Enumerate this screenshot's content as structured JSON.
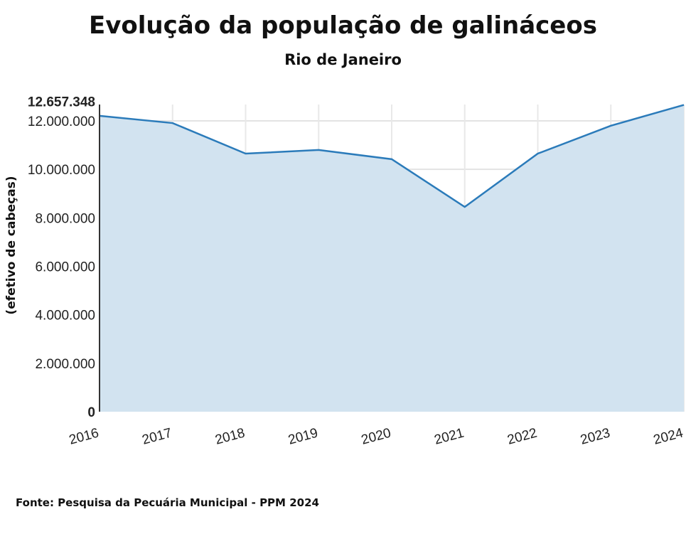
{
  "chart_data": {
    "type": "area",
    "title": "Evolução da população de galináceos",
    "subtitle": "Rio de Janeiro",
    "xlabel": "",
    "ylabel": "(efetivo de cabeças)",
    "x": [
      "2016",
      "2017",
      "2018",
      "2019",
      "2020",
      "2021",
      "2022",
      "2023",
      "2024"
    ],
    "series": [
      {
        "name": "Galináceos",
        "values": [
          12210000,
          11910000,
          10650000,
          10800000,
          10420000,
          8450000,
          10650000,
          11800000,
          12657348
        ]
      }
    ],
    "ylim": [
      0,
      12657348
    ],
    "yticks": [
      0,
      2000000,
      4000000,
      6000000,
      8000000,
      10000000,
      12000000,
      12657348
    ],
    "ytick_labels": [
      "0",
      "2.000.000",
      "4.000.000",
      "6.000.000",
      "8.000.000",
      "10.000.000",
      "12.000.000",
      "12.657.348"
    ],
    "grid": true,
    "line_color": "#2b7bba",
    "fill_color": "#d2e3f0"
  },
  "source": "Fonte: Pesquisa da Pecuária Municipal - PPM 2024"
}
